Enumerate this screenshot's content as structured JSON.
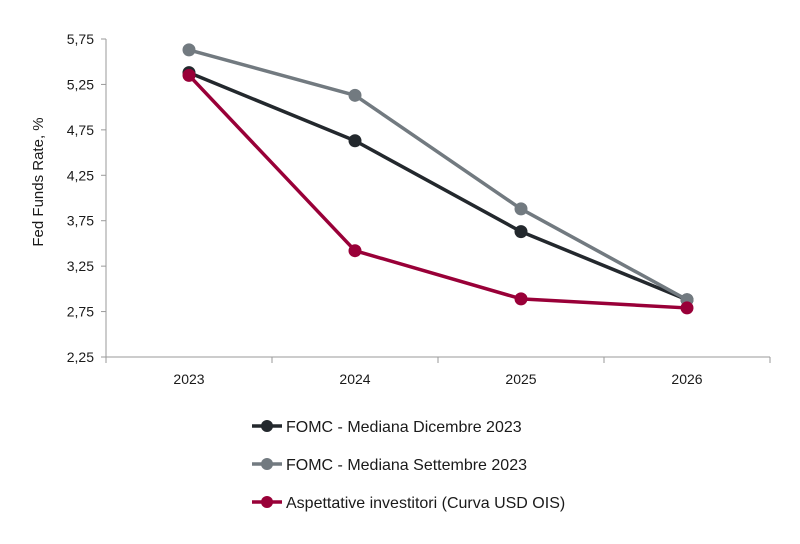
{
  "chart_data": {
    "type": "line",
    "title": "",
    "xlabel": "",
    "ylabel": "Fed Funds Rate, %",
    "categories": [
      "2023",
      "2024",
      "2025",
      "2026"
    ],
    "yticks": [
      "2,25",
      "2,75",
      "3,25",
      "3,75",
      "4,25",
      "4,75",
      "5,25",
      "5,75"
    ],
    "ylim": [
      2.25,
      5.75
    ],
    "grid": false,
    "legend_position": "bottom",
    "series": [
      {
        "name": "FOMC - Mediana Dicembre 2023",
        "color": "#23282d",
        "values": [
          5.38,
          4.63,
          3.63,
          2.88
        ]
      },
      {
        "name": "FOMC - Mediana Settembre 2023",
        "color": "#727a80",
        "values": [
          5.63,
          5.13,
          3.88,
          2.88
        ]
      },
      {
        "name": "Aspettative investitori (Curva USD OIS)",
        "color": "#990038",
        "values": [
          5.35,
          3.42,
          2.89,
          2.79
        ]
      }
    ]
  }
}
